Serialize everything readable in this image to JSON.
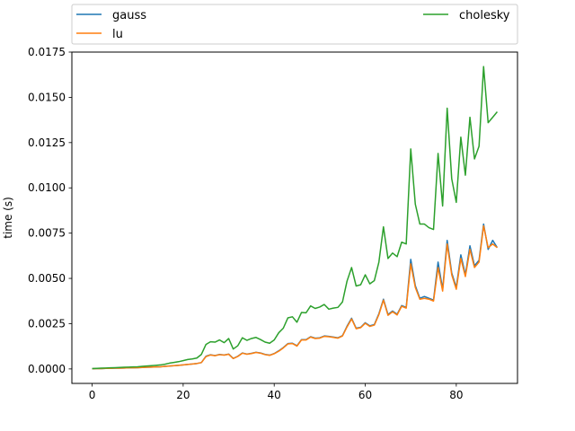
{
  "chart_data": {
    "type": "line",
    "ylabel": "time (s)",
    "xlabel": "",
    "title": "",
    "xlim": [
      -4.45,
      93.45
    ],
    "ylim": [
      -0.0008,
      0.0175
    ],
    "xticks": [
      0,
      20,
      40,
      60,
      80
    ],
    "xtick_labels": [
      "0",
      "20",
      "40",
      "60",
      "80"
    ],
    "yticks": [
      0.0,
      0.0025,
      0.005,
      0.0075,
      0.01,
      0.0125,
      0.015,
      0.0175
    ],
    "ytick_labels": [
      "0.0000",
      "0.0025",
      "0.0050",
      "0.0075",
      "0.0100",
      "0.0125",
      "0.0150",
      "0.0175"
    ],
    "grid": false,
    "legend": {
      "placement": "top",
      "columns": 2
    },
    "x": [
      0,
      1,
      2,
      3,
      4,
      5,
      6,
      7,
      8,
      9,
      10,
      11,
      12,
      13,
      14,
      15,
      16,
      17,
      18,
      19,
      20,
      21,
      22,
      23,
      24,
      25,
      26,
      27,
      28,
      29,
      30,
      31,
      32,
      33,
      34,
      35,
      36,
      37,
      38,
      39,
      40,
      41,
      42,
      43,
      44,
      45,
      46,
      47,
      48,
      49,
      50,
      51,
      52,
      53,
      54,
      55,
      56,
      57,
      58,
      59,
      60,
      61,
      62,
      63,
      64,
      65,
      66,
      67,
      68,
      69,
      70,
      71,
      72,
      73,
      74,
      75,
      76,
      77,
      78,
      79,
      80,
      81,
      82,
      83,
      84,
      85,
      86,
      87,
      88,
      89
    ],
    "series": [
      {
        "name": "gauss",
        "color": "#1f77b4",
        "values": [
          1e-05,
          2e-05,
          2e-05,
          3e-05,
          3e-05,
          4e-05,
          4e-05,
          5e-05,
          6e-05,
          6e-05,
          7e-05,
          8e-05,
          9e-05,
          0.0001,
          0.00011,
          0.00012,
          0.00014,
          0.00016,
          0.00018,
          0.0002,
          0.00022,
          0.00025,
          0.00027,
          0.0003,
          0.00035,
          0.0007,
          0.00078,
          0.00074,
          0.0008,
          0.00077,
          0.00082,
          0.00058,
          0.0007,
          0.00088,
          0.00082,
          0.00086,
          0.00092,
          0.00088,
          0.0008,
          0.00076,
          0.00085,
          0.001,
          0.00118,
          0.0014,
          0.00142,
          0.00128,
          0.00162,
          0.00162,
          0.00178,
          0.0017,
          0.00172,
          0.00182,
          0.0018,
          0.00176,
          0.00172,
          0.00184,
          0.00236,
          0.0028,
          0.00225,
          0.0023,
          0.00255,
          0.00238,
          0.00245,
          0.00305,
          0.00385,
          0.003,
          0.0032,
          0.00302,
          0.0035,
          0.0034,
          0.00605,
          0.0046,
          0.0039,
          0.004,
          0.0039,
          0.0038,
          0.0059,
          0.0044,
          0.0071,
          0.0053,
          0.0045,
          0.0063,
          0.0052,
          0.0068,
          0.0057,
          0.006,
          0.008,
          0.0066,
          0.0071,
          0.0067
        ]
      },
      {
        "name": "lu",
        "color": "#ff7f0e",
        "values": [
          1e-05,
          2e-05,
          2e-05,
          3e-05,
          3e-05,
          4e-05,
          4e-05,
          5e-05,
          6e-05,
          6e-05,
          7e-05,
          8e-05,
          9e-05,
          0.0001,
          0.00011,
          0.00012,
          0.00014,
          0.00016,
          0.00018,
          0.0002,
          0.00022,
          0.00025,
          0.00027,
          0.0003,
          0.00035,
          0.00068,
          0.00077,
          0.00073,
          0.00079,
          0.00076,
          0.00081,
          0.00057,
          0.00069,
          0.00087,
          0.00081,
          0.00085,
          0.00091,
          0.00087,
          0.00079,
          0.00075,
          0.00084,
          0.00098,
          0.00116,
          0.00138,
          0.0014,
          0.00126,
          0.0016,
          0.0016,
          0.00176,
          0.00168,
          0.0017,
          0.0018,
          0.00178,
          0.00174,
          0.0017,
          0.00182,
          0.00232,
          0.00276,
          0.00222,
          0.00228,
          0.00252,
          0.00235,
          0.00242,
          0.003,
          0.0038,
          0.00296,
          0.00316,
          0.00298,
          0.00346,
          0.00336,
          0.0058,
          0.0045,
          0.00385,
          0.0039,
          0.00385,
          0.00375,
          0.0056,
          0.0043,
          0.0069,
          0.0052,
          0.0044,
          0.0061,
          0.0051,
          0.0066,
          0.0056,
          0.0059,
          0.0079,
          0.0067,
          0.0069,
          0.0067
        ]
      },
      {
        "name": "cholesky",
        "color": "#2ca02c",
        "values": [
          2e-05,
          3e-05,
          4e-05,
          5e-05,
          6e-05,
          7e-05,
          8e-05,
          9e-05,
          0.0001,
          0.00011,
          0.00012,
          0.00014,
          0.00016,
          0.00018,
          0.0002,
          0.00022,
          0.00026,
          0.00032,
          0.00036,
          0.0004,
          0.00046,
          0.00052,
          0.00055,
          0.0006,
          0.0008,
          0.00135,
          0.0015,
          0.00148,
          0.0016,
          0.00145,
          0.00168,
          0.0011,
          0.00128,
          0.00172,
          0.00158,
          0.00168,
          0.00174,
          0.00162,
          0.00148,
          0.00142,
          0.0016,
          0.002,
          0.00225,
          0.00282,
          0.00288,
          0.00258,
          0.00312,
          0.0031,
          0.00348,
          0.00334,
          0.00342,
          0.00356,
          0.0033,
          0.00336,
          0.0034,
          0.0037,
          0.00485,
          0.0056,
          0.00458,
          0.00465,
          0.0052,
          0.0047,
          0.00488,
          0.0059,
          0.00785,
          0.0061,
          0.0064,
          0.0062,
          0.007,
          0.0069,
          0.01215,
          0.0091,
          0.008,
          0.008,
          0.0078,
          0.0077,
          0.0119,
          0.009,
          0.0144,
          0.0105,
          0.0092,
          0.0128,
          0.0107,
          0.0139,
          0.0116,
          0.0123,
          0.0167,
          0.0136,
          0.0139,
          0.0142
        ]
      }
    ]
  }
}
